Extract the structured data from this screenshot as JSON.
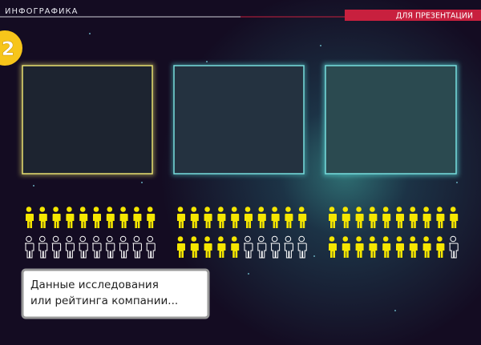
{
  "header": {
    "title": "ИНФОГРАФИКА",
    "tag": "ДЛЯ ПРЕЗЕНТАЦИИ"
  },
  "badge": "2",
  "pictograms": [
    {
      "filled": 10,
      "total": 20
    },
    {
      "filled": 15,
      "total": 20
    },
    {
      "filled": 19,
      "total": 20
    }
  ],
  "note": {
    "lines": [
      "Данные исследования",
      "или рейтинга компании..."
    ]
  }
}
